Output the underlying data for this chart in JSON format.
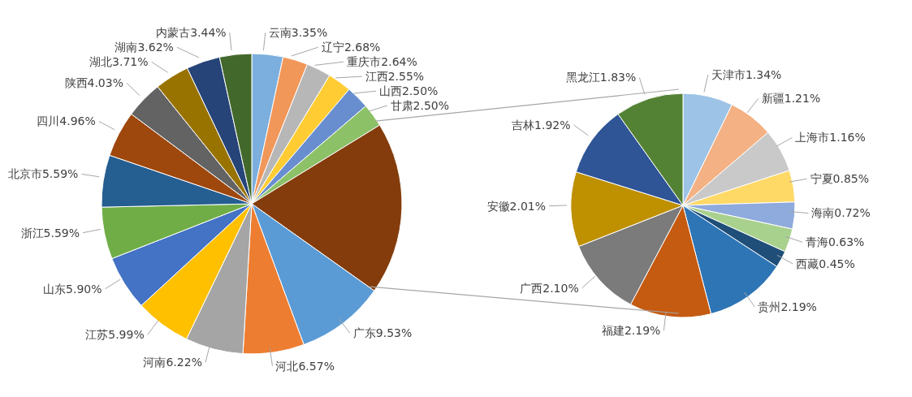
{
  "chart_data": [
    {
      "type": "pie",
      "categories": [
        "云南",
        "辽宁",
        "重庆市",
        "江西",
        "山西",
        "甘肃",
        null,
        "广东",
        "河北",
        "河南",
        "江苏",
        "山东",
        "浙江",
        "北京市",
        "四川",
        "陕西",
        "湖北",
        "湖南",
        "内蒙古"
      ],
      "values": [
        3.35,
        2.68,
        2.64,
        2.55,
        2.5,
        2.5,
        18.6,
        9.53,
        6.57,
        6.22,
        5.99,
        5.9,
        5.59,
        5.59,
        4.96,
        4.03,
        3.71,
        3.62,
        3.44
      ],
      "colors": [
        "#7cafdd",
        "#f1975a",
        "#b7b7b7",
        "#ffcd33",
        "#698ed0",
        "#8cc168",
        "#843c0c",
        "#5b9bd5",
        "#ed7d31",
        "#a5a5a5",
        "#ffc000",
        "#4472c4",
        "#70ad47",
        "#255e91",
        "#9e480e",
        "#636363",
        "#997300",
        "#264478",
        "#43682b"
      ],
      "value_labels": [
        "3.35%",
        "2.68%",
        "2.64%",
        "2.55%",
        "2.50%",
        "2.50%",
        null,
        "9.53%",
        "6.57%",
        "6.22%",
        "5.99%",
        "5.90%",
        "5.59%",
        "5.59%",
        "4.96%",
        "4.03%",
        "3.71%",
        "3.62%",
        "3.44%"
      ]
    },
    {
      "type": "pie",
      "categories": [
        "天津市",
        "新疆",
        "上海市",
        "宁夏",
        "海南",
        "青海",
        "西藏",
        "贵州",
        "福建",
        "广西",
        "安徽",
        "吉林",
        "黑龙江"
      ],
      "values": [
        1.34,
        1.21,
        1.16,
        0.85,
        0.72,
        0.63,
        0.45,
        2.19,
        2.19,
        2.1,
        2.01,
        1.92,
        1.83
      ],
      "colors": [
        "#9dc3e6",
        "#f4b183",
        "#c9c9c9",
        "#ffd966",
        "#8faadc",
        "#a9d18e",
        "#1f4e79",
        "#2e75b6",
        "#c55a11",
        "#7b7b7b",
        "#bf9000",
        "#2f5597",
        "#548235"
      ],
      "value_labels": [
        "1.34%",
        "1.21%",
        "1.16%",
        "0.85%",
        "0.72%",
        "0.63%",
        "0.45%",
        "2.19%",
        "2.19%",
        "2.10%",
        "2.01%",
        "1.92%",
        "1.83%"
      ]
    }
  ]
}
